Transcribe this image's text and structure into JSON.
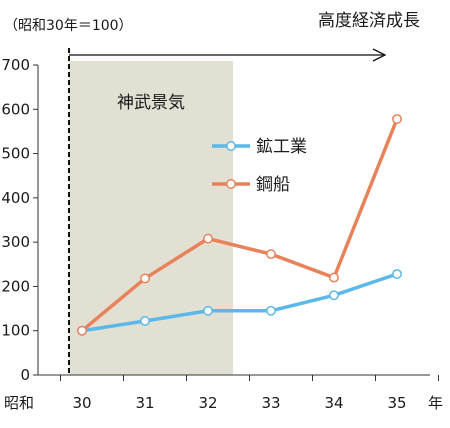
{
  "chart_data": {
    "type": "line",
    "unit_note": "（昭和30年＝100）",
    "banner": "高度経済成長",
    "shaded_period_label": "神武景気",
    "x_prefix_label": "昭和",
    "x_suffix_label": "年",
    "categories": [
      "30",
      "31",
      "32",
      "33",
      "34",
      "35"
    ],
    "shaded_range": [
      "30",
      "32"
    ],
    "ylim": [
      0,
      700
    ],
    "yticks": [
      0,
      100,
      200,
      300,
      400,
      500,
      600,
      700
    ],
    "grid": false,
    "legend_position": "right-middle",
    "series": [
      {
        "name": "鉱工業",
        "color": "#5bb8e8",
        "values": [
          100,
          122,
          145,
          145,
          180,
          228
        ]
      },
      {
        "name": "鋼船",
        "color": "#e8825a",
        "values": [
          100,
          218,
          308,
          273,
          220,
          578
        ]
      }
    ]
  }
}
